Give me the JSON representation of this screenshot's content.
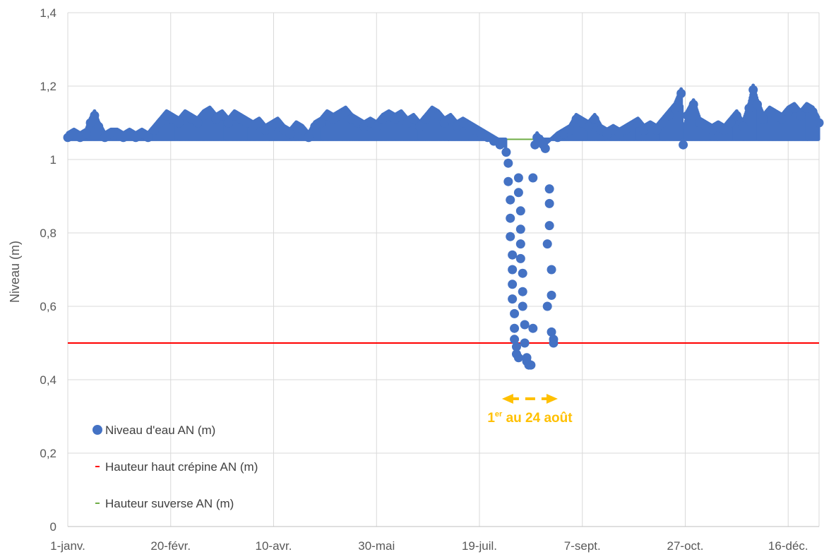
{
  "chart_data": {
    "type": "scatter",
    "title": "",
    "xlabel": "",
    "ylabel": "Niveau (m)",
    "ylim": [
      0,
      1.4
    ],
    "xlim": [
      "2000-01-01",
      "2000-12-31"
    ],
    "yticks": [
      "0",
      "0,2",
      "0,4",
      "0,6",
      "0,8",
      "1",
      "1,2",
      "1,4"
    ],
    "xticks": [
      {
        "date": "2000-01-01",
        "label": "1-janv."
      },
      {
        "date": "2000-02-20",
        "label": "20-févr."
      },
      {
        "date": "2000-04-10",
        "label": "10-avr."
      },
      {
        "date": "2000-05-30",
        "label": "30-mai"
      },
      {
        "date": "2000-07-19",
        "label": "19-juil."
      },
      {
        "date": "2000-09-07",
        "label": "7-sept."
      },
      {
        "date": "2000-10-27",
        "label": "27-oct."
      },
      {
        "date": "2000-12-16",
        "label": "16-déc."
      }
    ],
    "grid": true,
    "legend_position": "bottom-left",
    "series": [
      {
        "name": "Niveau d'eau AN (m)",
        "kind": "scatter",
        "color": "#4472c4",
        "points": [
          [
            "2000-01-01",
            1.06
          ],
          [
            "2000-01-04",
            1.07
          ],
          [
            "2000-01-07",
            1.06
          ],
          [
            "2000-01-10",
            1.07
          ],
          [
            "2000-01-12",
            1.1
          ],
          [
            "2000-01-14",
            1.12
          ],
          [
            "2000-01-16",
            1.09
          ],
          [
            "2000-01-19",
            1.06
          ],
          [
            "2000-01-22",
            1.07
          ],
          [
            "2000-01-25",
            1.07
          ],
          [
            "2000-01-28",
            1.06
          ],
          [
            "2000-01-31",
            1.07
          ],
          [
            "2000-02-03",
            1.06
          ],
          [
            "2000-02-06",
            1.07
          ],
          [
            "2000-02-09",
            1.06
          ],
          [
            "2000-02-12",
            1.08
          ],
          [
            "2000-02-15",
            1.1
          ],
          [
            "2000-02-18",
            1.12
          ],
          [
            "2000-02-21",
            1.11
          ],
          [
            "2000-02-24",
            1.1
          ],
          [
            "2000-02-27",
            1.12
          ],
          [
            "2000-03-01",
            1.11
          ],
          [
            "2000-03-04",
            1.1
          ],
          [
            "2000-03-07",
            1.12
          ],
          [
            "2000-03-10",
            1.13
          ],
          [
            "2000-03-13",
            1.11
          ],
          [
            "2000-03-16",
            1.12
          ],
          [
            "2000-03-19",
            1.1
          ],
          [
            "2000-03-22",
            1.12
          ],
          [
            "2000-03-25",
            1.11
          ],
          [
            "2000-03-28",
            1.1
          ],
          [
            "2000-03-31",
            1.09
          ],
          [
            "2000-04-03",
            1.1
          ],
          [
            "2000-04-06",
            1.08
          ],
          [
            "2000-04-09",
            1.09
          ],
          [
            "2000-04-12",
            1.1
          ],
          [
            "2000-04-15",
            1.08
          ],
          [
            "2000-04-18",
            1.07
          ],
          [
            "2000-04-21",
            1.09
          ],
          [
            "2000-04-24",
            1.08
          ],
          [
            "2000-04-27",
            1.06
          ],
          [
            "2000-04-30",
            1.09
          ],
          [
            "2000-05-03",
            1.1
          ],
          [
            "2000-05-06",
            1.12
          ],
          [
            "2000-05-09",
            1.11
          ],
          [
            "2000-05-12",
            1.12
          ],
          [
            "2000-05-15",
            1.13
          ],
          [
            "2000-05-18",
            1.11
          ],
          [
            "2000-05-21",
            1.1
          ],
          [
            "2000-05-24",
            1.09
          ],
          [
            "2000-05-27",
            1.1
          ],
          [
            "2000-05-30",
            1.09
          ],
          [
            "2000-06-02",
            1.11
          ],
          [
            "2000-06-05",
            1.12
          ],
          [
            "2000-06-08",
            1.11
          ],
          [
            "2000-06-11",
            1.12
          ],
          [
            "2000-06-14",
            1.1
          ],
          [
            "2000-06-17",
            1.11
          ],
          [
            "2000-06-20",
            1.09
          ],
          [
            "2000-06-23",
            1.11
          ],
          [
            "2000-06-26",
            1.13
          ],
          [
            "2000-06-29",
            1.12
          ],
          [
            "2000-07-02",
            1.1
          ],
          [
            "2000-07-05",
            1.11
          ],
          [
            "2000-07-08",
            1.09
          ],
          [
            "2000-07-11",
            1.1
          ],
          [
            "2000-07-14",
            1.09
          ],
          [
            "2000-07-17",
            1.08
          ],
          [
            "2000-07-20",
            1.07
          ],
          [
            "2000-07-23",
            1.06
          ],
          [
            "2000-07-26",
            1.05
          ],
          [
            "2000-07-29",
            1.04
          ],
          [
            "2000-08-01",
            1.02
          ],
          [
            "2000-08-02",
            0.99
          ],
          [
            "2000-08-02",
            0.94
          ],
          [
            "2000-08-03",
            0.89
          ],
          [
            "2000-08-03",
            0.84
          ],
          [
            "2000-08-03",
            0.79
          ],
          [
            "2000-08-04",
            0.74
          ],
          [
            "2000-08-04",
            0.7
          ],
          [
            "2000-08-04",
            0.66
          ],
          [
            "2000-08-04",
            0.62
          ],
          [
            "2000-08-05",
            0.58
          ],
          [
            "2000-08-05",
            0.54
          ],
          [
            "2000-08-05",
            0.51
          ],
          [
            "2000-08-06",
            0.49
          ],
          [
            "2000-08-06",
            0.47
          ],
          [
            "2000-08-07",
            0.46
          ],
          [
            "2000-08-07",
            0.95
          ],
          [
            "2000-08-07",
            0.91
          ],
          [
            "2000-08-08",
            0.86
          ],
          [
            "2000-08-08",
            0.81
          ],
          [
            "2000-08-08",
            0.77
          ],
          [
            "2000-08-08",
            0.73
          ],
          [
            "2000-08-09",
            0.69
          ],
          [
            "2000-08-09",
            0.64
          ],
          [
            "2000-08-09",
            0.6
          ],
          [
            "2000-08-10",
            0.55
          ],
          [
            "2000-08-10",
            0.5
          ],
          [
            "2000-08-11",
            0.46
          ],
          [
            "2000-08-11",
            0.45
          ],
          [
            "2000-08-12",
            0.44
          ],
          [
            "2000-08-13",
            0.44
          ],
          [
            "2000-08-14",
            0.95
          ],
          [
            "2000-08-14",
            0.54
          ],
          [
            "2000-08-15",
            1.04
          ],
          [
            "2000-08-16",
            1.06
          ],
          [
            "2000-08-17",
            1.05
          ],
          [
            "2000-08-18",
            1.05
          ],
          [
            "2000-08-19",
            1.04
          ],
          [
            "2000-08-20",
            1.03
          ],
          [
            "2000-08-21",
            0.77
          ],
          [
            "2000-08-21",
            0.6
          ],
          [
            "2000-08-22",
            0.92
          ],
          [
            "2000-08-22",
            0.88
          ],
          [
            "2000-08-22",
            0.82
          ],
          [
            "2000-08-23",
            0.7
          ],
          [
            "2000-08-23",
            0.63
          ],
          [
            "2000-08-23",
            0.53
          ],
          [
            "2000-08-24",
            0.51
          ],
          [
            "2000-08-24",
            0.5
          ],
          [
            "2000-08-26",
            1.06
          ],
          [
            "2000-08-29",
            1.07
          ],
          [
            "2000-09-01",
            1.08
          ],
          [
            "2000-09-04",
            1.11
          ],
          [
            "2000-09-07",
            1.1
          ],
          [
            "2000-09-10",
            1.09
          ],
          [
            "2000-09-13",
            1.11
          ],
          [
            "2000-09-16",
            1.08
          ],
          [
            "2000-09-19",
            1.07
          ],
          [
            "2000-09-22",
            1.08
          ],
          [
            "2000-09-25",
            1.07
          ],
          [
            "2000-09-28",
            1.08
          ],
          [
            "2000-10-01",
            1.09
          ],
          [
            "2000-10-04",
            1.1
          ],
          [
            "2000-10-07",
            1.08
          ],
          [
            "2000-10-10",
            1.09
          ],
          [
            "2000-10-13",
            1.08
          ],
          [
            "2000-10-16",
            1.1
          ],
          [
            "2000-10-19",
            1.12
          ],
          [
            "2000-10-22",
            1.14
          ],
          [
            "2000-10-25",
            1.18
          ],
          [
            "2000-10-26",
            1.04
          ],
          [
            "2000-10-28",
            1.12
          ],
          [
            "2000-10-31",
            1.15
          ],
          [
            "2000-11-03",
            1.1
          ],
          [
            "2000-11-06",
            1.09
          ],
          [
            "2000-11-09",
            1.08
          ],
          [
            "2000-11-12",
            1.09
          ],
          [
            "2000-11-15",
            1.08
          ],
          [
            "2000-11-18",
            1.1
          ],
          [
            "2000-11-21",
            1.12
          ],
          [
            "2000-11-24",
            1.09
          ],
          [
            "2000-11-27",
            1.14
          ],
          [
            "2000-11-29",
            1.19
          ],
          [
            "2000-12-01",
            1.15
          ],
          [
            "2000-12-04",
            1.11
          ],
          [
            "2000-12-07",
            1.13
          ],
          [
            "2000-12-10",
            1.12
          ],
          [
            "2000-12-13",
            1.11
          ],
          [
            "2000-12-16",
            1.13
          ],
          [
            "2000-12-19",
            1.14
          ],
          [
            "2000-12-22",
            1.12
          ],
          [
            "2000-12-25",
            1.14
          ],
          [
            "2000-12-28",
            1.13
          ],
          [
            "2000-12-31",
            1.1
          ]
        ]
      },
      {
        "name": "Hauteur haut crépine AN (m)",
        "kind": "hline",
        "color": "#ff0000",
        "value": 0.5
      },
      {
        "name": "Hauteur suverse AN (m)",
        "kind": "hline",
        "color": "#70ad47",
        "value": 1.055
      }
    ],
    "annotations": [
      {
        "text_main": "1",
        "text_sup": "er",
        "text_rest": " au 24 août",
        "from": "2000-08-01",
        "to": "2000-08-24",
        "color": "#ffc000"
      }
    ]
  }
}
